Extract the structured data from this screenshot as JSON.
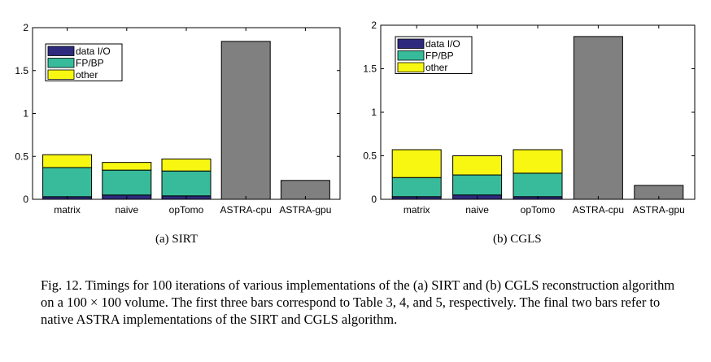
{
  "chart_data": [
    {
      "type": "bar",
      "stacked": true,
      "categories": [
        "matrix",
        "naive",
        "opTomo",
        "ASTRA-cpu",
        "ASTRA-gpu"
      ],
      "series": [
        {
          "name": "data I/O",
          "color": "#2e2a7d",
          "values": [
            0.03,
            0.05,
            0.04,
            0,
            0
          ]
        },
        {
          "name": "FP/BP",
          "color": "#37bb9b",
          "values": [
            0.34,
            0.29,
            0.29,
            0,
            0
          ]
        },
        {
          "name": "other",
          "color": "#f7f711",
          "values": [
            0.15,
            0.09,
            0.14,
            0,
            0
          ]
        },
        {
          "name": "",
          "color": "#808080",
          "values": [
            0,
            0,
            0,
            1.84,
            0.22
          ]
        }
      ],
      "yticks": [
        "0",
        "0.5",
        "1",
        "1.5",
        "2"
      ],
      "ylim": [
        0,
        2
      ],
      "legend": "top-left",
      "grid": false,
      "subcaption": "(a) SIRT"
    },
    {
      "type": "bar",
      "stacked": true,
      "categories": [
        "matrix",
        "naive",
        "opTomo",
        "ASTRA-cpu",
        "ASTRA-gpu"
      ],
      "series": [
        {
          "name": "data I/O",
          "color": "#2e2a7d",
          "values": [
            0.03,
            0.05,
            0.03,
            0,
            0
          ]
        },
        {
          "name": "FP/BP",
          "color": "#37bb9b",
          "values": [
            0.22,
            0.23,
            0.27,
            0,
            0
          ]
        },
        {
          "name": "other",
          "color": "#f7f711",
          "values": [
            0.32,
            0.22,
            0.27,
            0,
            0
          ]
        },
        {
          "name": "",
          "color": "#808080",
          "values": [
            0,
            0,
            0,
            1.87,
            0.16
          ]
        }
      ],
      "yticks": [
        "0",
        "0.5",
        "1",
        "1.5",
        "2"
      ],
      "ylim": [
        0,
        2
      ],
      "legend": "top-left",
      "grid": false,
      "subcaption": "(b) CGLS"
    }
  ],
  "caption": "Fig. 12. Timings for 100 iterations of various implementations of the (a) SIRT and (b) CGLS reconstruction algorithm on a 100 × 100 volume. The first three bars correspond to Table 3, 4, and 5, respectively. The final two bars refer to native ASTRA implementations of the SIRT and CGLS algorithm."
}
